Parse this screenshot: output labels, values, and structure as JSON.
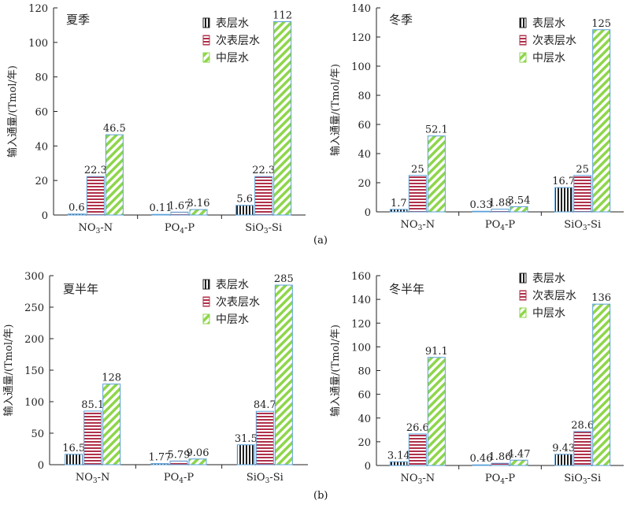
{
  "figure_labels": {
    "a": "(a)",
    "b": "(b)"
  },
  "legend": [
    "表层水",
    "次表层水",
    "中层水"
  ],
  "colors": {
    "surface": "#1f1f1f",
    "subsurface": "#b0304a",
    "intermediate": "#8ed64a",
    "outline": "#5aa0d8",
    "axis": "#222222"
  },
  "chart_data": [
    {
      "type": "bar",
      "title": "夏季",
      "ylabel": "输入通量/(Tmol/年)",
      "categories": [
        "NO3-N",
        "PO4-P",
        "SiO3-Si"
      ],
      "yticks": [
        "0",
        "20",
        "40",
        "60",
        "80",
        "100",
        "120"
      ],
      "ylim": [
        0,
        120
      ],
      "series": [
        {
          "name": "表层水",
          "values": [
            0.6,
            0.11,
            5.6
          ],
          "labels": [
            "0.6",
            "0.11",
            "5.6"
          ]
        },
        {
          "name": "次表层水",
          "values": [
            22.3,
            1.67,
            22.3
          ],
          "labels": [
            "22.3",
            "1.67",
            "22.3"
          ]
        },
        {
          "name": "中层水",
          "values": [
            46.5,
            3.16,
            112
          ],
          "labels": [
            "46.5",
            "3.16",
            "112"
          ]
        }
      ]
    },
    {
      "type": "bar",
      "title": "冬季",
      "ylabel": "输入通量/(Tmol/年)",
      "categories": [
        "NO3-N",
        "PO4-P",
        "SiO3-Si"
      ],
      "yticks": [
        "0",
        "20",
        "40",
        "60",
        "80",
        "100",
        "120",
        "140"
      ],
      "ylim": [
        0,
        140
      ],
      "series": [
        {
          "name": "表层水",
          "values": [
            1.7,
            0.33,
            16.7
          ],
          "labels": [
            "1.7",
            "0.33",
            "16.7"
          ]
        },
        {
          "name": "次表层水",
          "values": [
            25,
            1.88,
            25
          ],
          "labels": [
            "25",
            "1.88",
            "25"
          ]
        },
        {
          "name": "中层水",
          "values": [
            52.1,
            3.54,
            125
          ],
          "labels": [
            "52.1",
            "3.54",
            "125"
          ]
        }
      ]
    },
    {
      "type": "bar",
      "title": "夏半年",
      "ylabel": "输入通量/(Tmol/年)",
      "categories": [
        "NO3-N",
        "PO4-P",
        "SiO3-Si"
      ],
      "yticks": [
        "0",
        "50",
        "100",
        "150",
        "200",
        "250",
        "300"
      ],
      "ylim": [
        0,
        300
      ],
      "series": [
        {
          "name": "表层水",
          "values": [
            16.5,
            1.77,
            31.5
          ],
          "labels": [
            "16.5",
            "1.77",
            "31.5"
          ]
        },
        {
          "name": "次表层水",
          "values": [
            85.1,
            5.79,
            84.7
          ],
          "labels": [
            "85.1",
            "5.79",
            "84.7"
          ]
        },
        {
          "name": "中层水",
          "values": [
            128,
            9.06,
            285
          ],
          "labels": [
            "128",
            "9.06",
            "285"
          ]
        }
      ]
    },
    {
      "type": "bar",
      "title": "冬半年",
      "ylabel": "输入通量/(Tmol/年)",
      "categories": [
        "NO3-N",
        "PO4-P",
        "SiO3-Si"
      ],
      "yticks": [
        "0",
        "20",
        "40",
        "60",
        "80",
        "100",
        "120",
        "140",
        "160"
      ],
      "ylim": [
        0,
        160
      ],
      "series": [
        {
          "name": "表层水",
          "values": [
            3.14,
            0.46,
            9.43
          ],
          "labels": [
            "3.14",
            "0.46",
            "9.43"
          ]
        },
        {
          "name": "次表层水",
          "values": [
            26.6,
            1.86,
            28.6
          ],
          "labels": [
            "26.6",
            "1.86",
            "28.6"
          ]
        },
        {
          "name": "中层水",
          "values": [
            91.1,
            4.47,
            136
          ],
          "labels": [
            "91.1",
            "4.47",
            "136"
          ]
        }
      ]
    }
  ]
}
